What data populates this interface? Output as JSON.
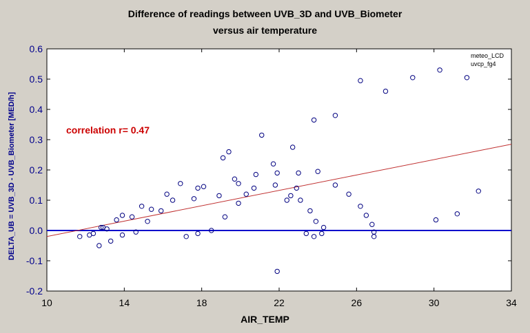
{
  "chart_data": {
    "type": "scatter",
    "title_lines": [
      "Difference of readings between UVB_3D and UVB_Biometer",
      "versus air temperature"
    ],
    "xlabel": "AIR_TEMP",
    "ylabel": "DELTA_UB = UVB_3D - UVB_Biometer [MED/h]",
    "xlim": [
      10,
      34
    ],
    "ylim": [
      -0.2,
      0.6
    ],
    "xticks": [
      10,
      14,
      18,
      22,
      26,
      30,
      34
    ],
    "yticks": [
      -0.2,
      -0.1,
      0.0,
      0.1,
      0.2,
      0.3,
      0.4,
      0.5,
      0.6
    ],
    "ytick_labels": [
      "-0.2",
      "-0.1",
      "0.0",
      "0.1",
      "0.2",
      "0.3",
      "0.4",
      "0.5",
      "0.6"
    ],
    "grid": false,
    "legend": {
      "placement": "top-right",
      "entries": [
        "meteo_LCD",
        "uvcp_fg4"
      ]
    },
    "annotation": "correlation r= 0.47",
    "colors": {
      "points": "#000080",
      "trend": "#c03030",
      "zero_line": "#0000cc",
      "background": "#d4d0c8",
      "plot_area": "#ffffff",
      "ytick": "#00008b",
      "annotation": "#cc0000"
    },
    "trend_line": {
      "x": [
        10,
        34
      ],
      "y": [
        -0.02,
        0.285
      ]
    },
    "reference_line": {
      "y": 0.0
    },
    "x": [
      11.7,
      12.2,
      12.4,
      12.7,
      12.8,
      12.9,
      13.1,
      13.3,
      13.6,
      13.9,
      13.9,
      14.4,
      14.6,
      14.9,
      15.2,
      15.4,
      15.9,
      16.2,
      16.5,
      16.9,
      17.2,
      17.6,
      17.8,
      17.8,
      18.1,
      18.5,
      18.9,
      19.1,
      19.2,
      19.4,
      19.7,
      19.9,
      19.9,
      20.3,
      20.7,
      20.8,
      21.1,
      21.7,
      21.8,
      21.9,
      21.9,
      22.4,
      22.6,
      22.7,
      22.9,
      23.0,
      23.1,
      23.4,
      23.6,
      23.8,
      23.8,
      23.9,
      24.0,
      24.2,
      24.3,
      24.9,
      24.9,
      25.6,
      26.2,
      26.2,
      26.5,
      26.8,
      26.9,
      26.9,
      27.5,
      28.9,
      30.1,
      30.3,
      31.2,
      31.7,
      32.3
    ],
    "y": [
      -0.02,
      -0.015,
      -0.01,
      -0.05,
      0.01,
      0.01,
      0.005,
      -0.035,
      0.035,
      0.05,
      -0.015,
      0.045,
      -0.005,
      0.08,
      0.03,
      0.07,
      0.065,
      0.12,
      0.1,
      0.155,
      -0.02,
      0.105,
      0.14,
      -0.01,
      0.145,
      0.0,
      0.115,
      0.24,
      0.045,
      0.26,
      0.17,
      0.09,
      0.155,
      0.12,
      0.14,
      0.185,
      0.315,
      0.22,
      0.15,
      0.19,
      -0.135,
      0.1,
      0.115,
      0.275,
      0.14,
      0.19,
      0.1,
      -0.01,
      0.065,
      0.365,
      -0.02,
      0.03,
      0.195,
      -0.01,
      0.01,
      0.38,
      0.15,
      0.12,
      0.495,
      0.08,
      0.05,
      0.02,
      -0.02,
      -0.005,
      0.46,
      0.505,
      0.035,
      0.53,
      0.055,
      0.505,
      0.13
    ]
  }
}
